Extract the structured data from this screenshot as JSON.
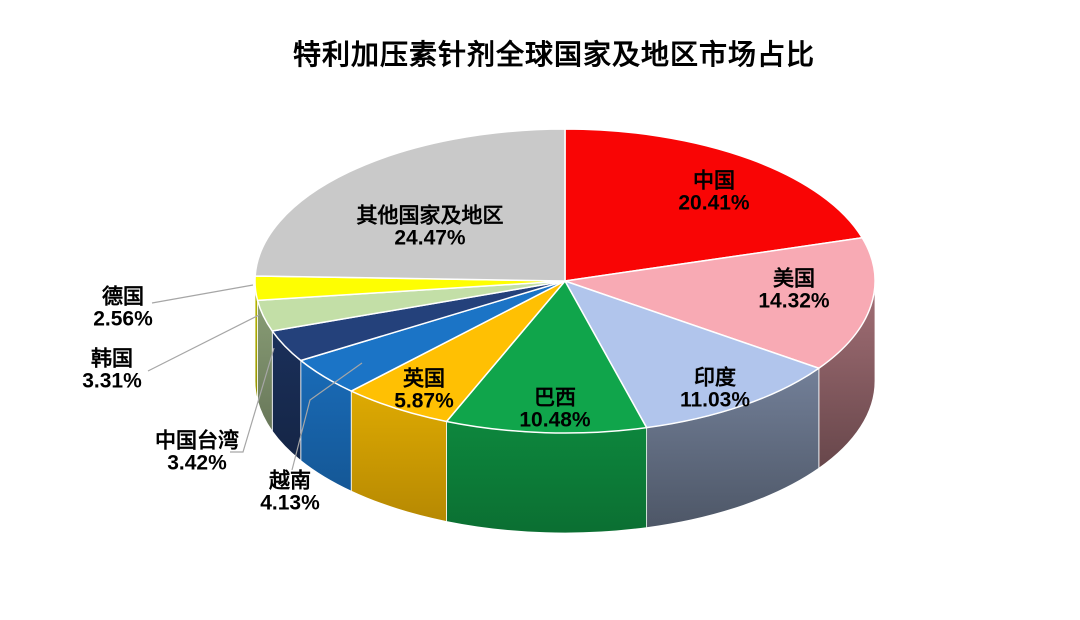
{
  "page": {
    "background": "#FFFFFF"
  },
  "chart_data": {
    "type": "pie",
    "is_3d": true,
    "title": "特利加压素针剂全球国家及地区市场占比",
    "legend_position": "none",
    "grid": false,
    "direction": "clockwise",
    "start_angle_deg": 0,
    "total": 100,
    "text_color": "#000000",
    "leader_line_color": "#A6A6A6",
    "slice_border_color": "#FFFFFF",
    "slices": [
      {
        "id": "china",
        "label": "中国",
        "value": 20.41,
        "pct_label": "20.41%",
        "color": "#F90505",
        "label_placement": "inside"
      },
      {
        "id": "usa",
        "label": "美国",
        "value": 14.32,
        "pct_label": "14.32%",
        "color": "#F8AAB4",
        "label_placement": "inside"
      },
      {
        "id": "india",
        "label": "印度",
        "value": 11.03,
        "pct_label": "11.03%",
        "color": "#B1C5EC",
        "label_placement": "inside"
      },
      {
        "id": "brazil",
        "label": "巴西",
        "value": 10.48,
        "pct_label": "10.48%",
        "color": "#10A54B",
        "label_placement": "inside"
      },
      {
        "id": "uk",
        "label": "英国",
        "value": 5.87,
        "pct_label": "5.87%",
        "color": "#FFC003",
        "label_placement": "inside"
      },
      {
        "id": "vietnam",
        "label": "越南",
        "value": 4.13,
        "pct_label": "4.13%",
        "color": "#1B74C6",
        "label_placement": "outside"
      },
      {
        "id": "taiwan-china",
        "label": "中国台湾",
        "value": 3.42,
        "pct_label": "3.42%",
        "color": "#24417B",
        "label_placement": "outside"
      },
      {
        "id": "south-korea",
        "label": "韩国",
        "value": 3.31,
        "pct_label": "3.31%",
        "color": "#C3DFA7",
        "label_placement": "outside"
      },
      {
        "id": "germany",
        "label": "德国",
        "value": 2.56,
        "pct_label": "2.56%",
        "color": "#FEFE02",
        "label_placement": "outside"
      },
      {
        "id": "others",
        "label": "其他国家及地区",
        "value": 24.47,
        "pct_label": "24.47%",
        "color": "#C9C9C9",
        "label_placement": "inside"
      }
    ]
  }
}
